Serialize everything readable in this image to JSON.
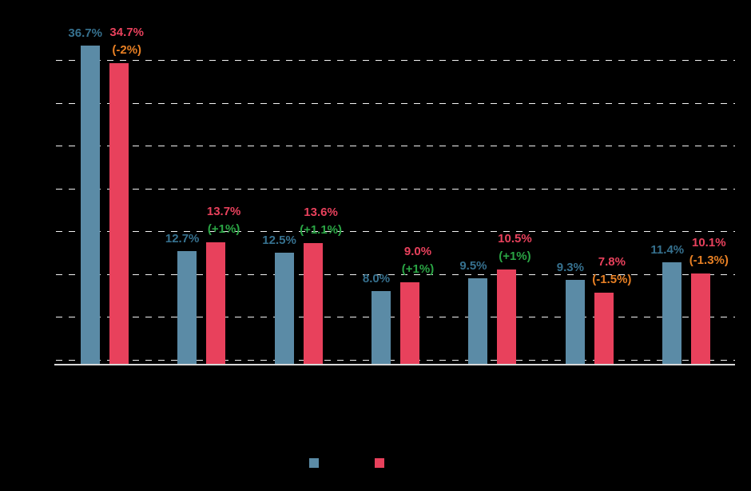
{
  "colors": {
    "background": "#000000",
    "bar_blue": "#5b8ba6",
    "bar_red": "#e8415c",
    "label_blue": "#36718f",
    "label_red": "#e8415c",
    "label_green": "#2aa544",
    "label_orange": "#e88024",
    "gridline": "#f2f2f2",
    "axis": "#d9d9d9"
  },
  "chart_data": {
    "type": "bar",
    "categories": [
      "",
      "",
      "",
      "",
      "",
      "",
      ""
    ],
    "series": [
      {
        "name": "",
        "color_key": "bar_blue",
        "values": [
          36.7,
          12.7,
          12.5,
          8.0,
          9.5,
          9.3,
          11.4
        ]
      },
      {
        "name": "",
        "color_key": "bar_red",
        "values": [
          34.7,
          13.7,
          13.6,
          9.0,
          10.5,
          7.8,
          10.1
        ]
      }
    ],
    "value_labels_series1": [
      "36.7%",
      "12.7%",
      "12.5%",
      "8.0%",
      "9.5%",
      "9.3%",
      "11.4%"
    ],
    "value_labels_series2": [
      "34.7%",
      "13.7%",
      "13.6%",
      "9.0%",
      "10.5%",
      "7.8%",
      "10.1%"
    ],
    "changes": [
      {
        "text": "(-2%)",
        "direction": "negative"
      },
      {
        "text": "(+1%)",
        "direction": "positive"
      },
      {
        "text": "(+1.1%)",
        "direction": "positive"
      },
      {
        "text": "(+1%)",
        "direction": "positive"
      },
      {
        "text": "(+1%)",
        "direction": "positive"
      },
      {
        "text": "(-1.5%)",
        "direction": "negative"
      },
      {
        "text": "(-1.3%)",
        "direction": "negative"
      }
    ],
    "ylim": [
      0,
      40
    ],
    "gridlines": [
      0,
      5,
      10,
      15,
      20,
      25,
      30,
      35
    ],
    "grid": "dashed",
    "legend_position": "bottom",
    "legend": [
      {
        "color_key": "bar_blue",
        "label": ""
      },
      {
        "color_key": "bar_red",
        "label": ""
      }
    ]
  }
}
